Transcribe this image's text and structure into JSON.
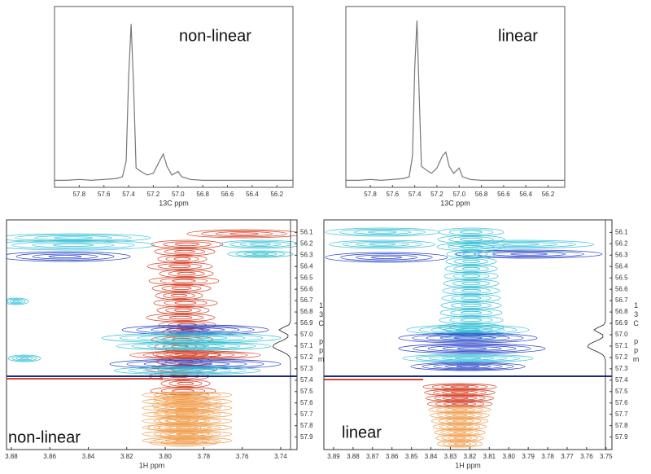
{
  "chart_data": [
    {
      "type": "line",
      "annotation": "non-linear",
      "x_label": "13C ppm",
      "color": "#777777",
      "x": [
        58.0,
        57.9,
        57.8,
        57.7,
        57.6,
        57.5,
        57.45,
        57.42,
        57.4,
        57.38,
        57.36,
        57.34,
        57.3,
        57.25,
        57.2,
        57.15,
        57.12,
        57.09,
        57.05,
        57.0,
        56.97,
        56.9,
        56.8,
        56.6,
        56.4,
        56.2,
        56.07
      ],
      "values": [
        1,
        1,
        1.5,
        1,
        1.5,
        2,
        3,
        12,
        60,
        90,
        55,
        8,
        6,
        4,
        5,
        12,
        16,
        9,
        4,
        6,
        3,
        1.5,
        1,
        1,
        1,
        1,
        1
      ],
      "xlim": [
        58.0,
        56.07
      ],
      "ylim": [
        -3,
        100
      ],
      "xticks": [
        57.8,
        57.6,
        57.4,
        57.2,
        {
          "value": 57.0,
          "label": "57.0"
        },
        56.8,
        56.6,
        56.4,
        56.2
      ]
    },
    {
      "type": "line",
      "annotation": "linear",
      "x_label": "13C ppm",
      "color": "#777777",
      "x": [
        58.02,
        57.9,
        57.8,
        57.7,
        57.6,
        57.5,
        57.45,
        57.42,
        57.4,
        57.38,
        57.36,
        57.34,
        57.3,
        57.25,
        57.2,
        57.15,
        57.12,
        57.09,
        57.05,
        57.0,
        56.97,
        56.9,
        56.8,
        56.6,
        56.4,
        56.2,
        56.05
      ],
      "values": [
        1,
        1,
        1.5,
        1,
        1.5,
        2,
        3,
        15,
        65,
        92,
        50,
        9,
        7,
        5,
        8,
        15,
        17,
        9,
        5,
        8,
        3,
        1.5,
        1,
        1,
        1,
        1,
        1
      ],
      "xlim": [
        58.02,
        56.05
      ],
      "ylim": [
        -3,
        100
      ],
      "xticks": [
        57.8,
        57.6,
        57.4,
        57.2,
        {
          "value": 57.0,
          "label": "57.0"
        },
        56.8,
        56.6,
        56.4,
        56.2
      ]
    },
    {
      "type": "contour",
      "annotation": "non-linear",
      "x_label": "1H ppm",
      "y_label": "13C ppm",
      "xlim": [
        3.8825,
        3.7315
      ],
      "ylim": [
        55.99,
        58.01
      ],
      "xticks": [
        3.88,
        3.86,
        3.84,
        3.82,
        {
          "value": 3.8,
          "label": "3.80"
        },
        3.78,
        3.76,
        3.74
      ],
      "yticks": [
        56.1,
        56.2,
        56.3,
        56.4,
        56.5,
        56.6,
        56.7,
        56.8,
        56.9,
        {
          "value": 57.0,
          "label": "57.0"
        },
        57.1,
        57.2,
        57.3,
        57.4,
        57.5,
        57.6,
        57.7,
        57.8,
        57.9
      ]
    },
    {
      "type": "contour",
      "annotation": "linear",
      "x_label": "1H ppm",
      "y_label": "13C ppm",
      "xlim": [
        3.895,
        3.747
      ],
      "ylim": [
        55.99,
        58.01
      ],
      "xticks": [
        3.89,
        3.88,
        3.87,
        3.86,
        3.85,
        3.84,
        3.83,
        3.82,
        3.81,
        {
          "value": 3.8,
          "label": "3.80"
        },
        3.79,
        3.78,
        3.77,
        3.76,
        {
          "value": 3.75,
          "label": "3.75"
        }
      ],
      "yticks": [
        56.1,
        56.2,
        56.3,
        56.4,
        56.5,
        56.6,
        56.7,
        56.8,
        56.9,
        {
          "value": 57.0,
          "label": "57.0"
        },
        57.1,
        57.2,
        57.3,
        57.4,
        57.5,
        57.6,
        57.7,
        57.8,
        57.9
      ]
    }
  ]
}
